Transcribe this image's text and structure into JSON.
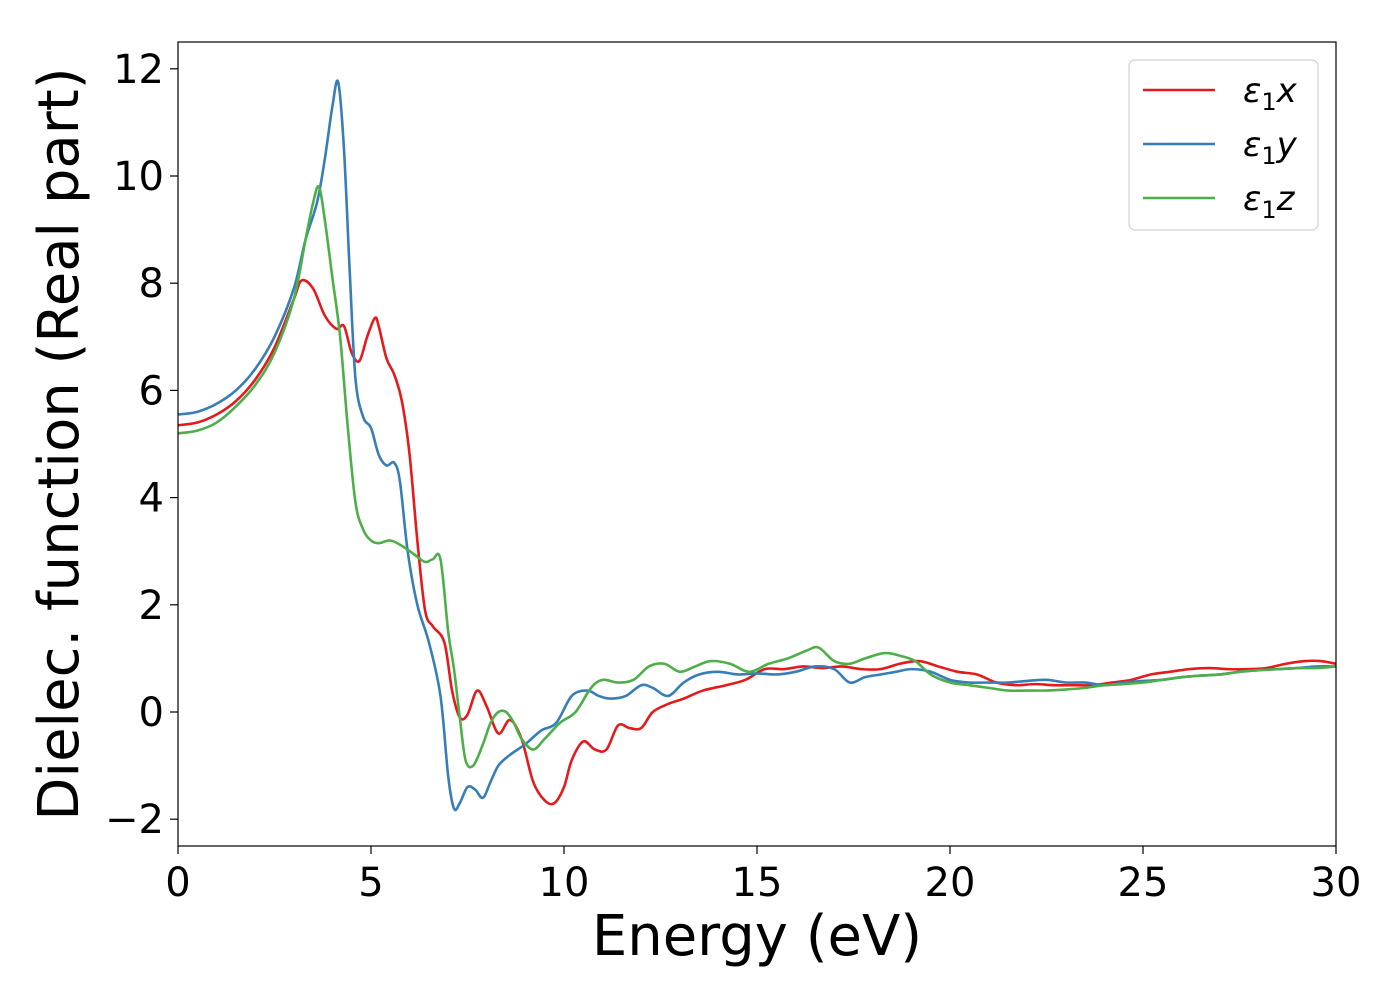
{
  "chart_data": {
    "type": "line",
    "title": "",
    "xlabel": "Energy (eV)",
    "ylabel": "Dielec. function (Real part)",
    "xlim": [
      0,
      30
    ],
    "ylim": [
      -2.5,
      12.5
    ],
    "xticks": [
      0,
      5,
      10,
      15,
      20,
      25,
      30
    ],
    "xtick_labels": [
      "0",
      "5",
      "10",
      "15",
      "20",
      "25",
      "30"
    ],
    "yticks": [
      -2,
      0,
      2,
      4,
      6,
      8,
      10,
      12
    ],
    "ytick_labels": [
      "−2",
      "0",
      "2",
      "4",
      "6",
      "8",
      "10",
      "12"
    ],
    "grid": false,
    "legend_position": "top-right",
    "series": [
      {
        "name": "ε1x",
        "symbol": "ε",
        "sub": "1",
        "axis": "x",
        "color": "#e41a1c",
        "x": [
          0,
          0.5,
          1,
          1.5,
          2,
          2.5,
          3,
          3.2,
          3.5,
          3.8,
          4.1,
          4.3,
          4.5,
          4.7,
          4.9,
          5.1,
          5.2,
          5.4,
          5.6,
          5.8,
          6.0,
          6.2,
          6.4,
          6.6,
          6.9,
          7.1,
          7.3,
          7.5,
          7.75,
          8.0,
          8.3,
          8.6,
          8.9,
          9.2,
          9.5,
          9.75,
          10.0,
          10.2,
          10.5,
          10.8,
          11.1,
          11.4,
          11.7,
          12.0,
          12.3,
          12.7,
          13.1,
          13.6,
          14.2,
          14.7,
          15.2,
          15.7,
          16.2,
          16.7,
          17.2,
          17.7,
          18.2,
          18.7,
          19.2,
          19.7,
          20.2,
          20.7,
          21.2,
          21.7,
          22.2,
          22.7,
          23.2,
          23.7,
          24.2,
          24.7,
          25.2,
          25.7,
          26.2,
          26.7,
          27.2,
          27.7,
          28.2,
          28.7,
          29.2,
          29.6,
          30.0
        ],
        "y": [
          5.35,
          5.4,
          5.55,
          5.8,
          6.2,
          6.8,
          7.7,
          8.05,
          7.9,
          7.4,
          7.15,
          7.2,
          6.7,
          6.55,
          7.0,
          7.35,
          7.2,
          6.6,
          6.3,
          5.8,
          4.8,
          3.2,
          1.9,
          1.6,
          1.3,
          0.4,
          -0.1,
          -0.05,
          0.4,
          0.1,
          -0.4,
          -0.15,
          -0.5,
          -1.3,
          -1.65,
          -1.7,
          -1.4,
          -0.9,
          -0.55,
          -0.7,
          -0.7,
          -0.25,
          -0.3,
          -0.3,
          0.0,
          0.15,
          0.25,
          0.4,
          0.5,
          0.6,
          0.8,
          0.8,
          0.85,
          0.82,
          0.85,
          0.8,
          0.8,
          0.9,
          0.95,
          0.85,
          0.75,
          0.7,
          0.55,
          0.5,
          0.52,
          0.5,
          0.5,
          0.5,
          0.55,
          0.6,
          0.7,
          0.75,
          0.8,
          0.82,
          0.8,
          0.8,
          0.82,
          0.9,
          0.95,
          0.95,
          0.9
        ]
      },
      {
        "name": "ε1y",
        "symbol": "ε",
        "sub": "1",
        "axis": "y",
        "color": "#377eb8",
        "x": [
          0,
          0.5,
          1,
          1.5,
          2,
          2.5,
          3,
          3.3,
          3.6,
          3.8,
          4.0,
          4.15,
          4.3,
          4.45,
          4.6,
          4.8,
          5.0,
          5.2,
          5.4,
          5.6,
          5.75,
          5.95,
          6.2,
          6.5,
          6.8,
          7.0,
          7.15,
          7.3,
          7.5,
          7.7,
          7.9,
          8.1,
          8.3,
          8.6,
          9.0,
          9.4,
          9.8,
          10.2,
          10.6,
          10.9,
          11.2,
          11.6,
          12.0,
          12.3,
          12.7,
          13.1,
          13.5,
          14.0,
          14.5,
          15.0,
          15.5,
          16.0,
          16.5,
          17.0,
          17.4,
          17.8,
          18.2,
          18.6,
          19.0,
          19.5,
          20.0,
          20.5,
          21.0,
          21.5,
          22.0,
          22.5,
          23.0,
          23.5,
          24.0,
          24.5,
          25.0,
          25.5,
          26.0,
          26.5,
          27.0,
          27.5,
          28.0,
          28.5,
          29.0,
          29.5,
          30.0
        ],
        "y": [
          5.55,
          5.6,
          5.75,
          6.0,
          6.4,
          7.0,
          7.9,
          8.8,
          9.5,
          10.3,
          11.3,
          11.75,
          10.5,
          8.2,
          6.2,
          5.5,
          5.3,
          4.8,
          4.6,
          4.65,
          4.3,
          3.0,
          2.0,
          1.3,
          0.3,
          -1.2,
          -1.8,
          -1.7,
          -1.4,
          -1.45,
          -1.6,
          -1.3,
          -1.0,
          -0.8,
          -0.6,
          -0.35,
          -0.2,
          0.3,
          0.4,
          0.3,
          0.25,
          0.3,
          0.5,
          0.45,
          0.3,
          0.55,
          0.7,
          0.75,
          0.7,
          0.72,
          0.7,
          0.75,
          0.85,
          0.8,
          0.55,
          0.65,
          0.7,
          0.75,
          0.8,
          0.75,
          0.6,
          0.55,
          0.55,
          0.55,
          0.58,
          0.6,
          0.55,
          0.55,
          0.5,
          0.55,
          0.58,
          0.6,
          0.65,
          0.68,
          0.7,
          0.75,
          0.78,
          0.8,
          0.82,
          0.85,
          0.85
        ]
      },
      {
        "name": "ε1z",
        "symbol": "ε",
        "sub": "1",
        "axis": "z",
        "color": "#4daf4a",
        "x": [
          0,
          0.5,
          1,
          1.5,
          2,
          2.5,
          3,
          3.3,
          3.5,
          3.65,
          3.8,
          4.0,
          4.2,
          4.4,
          4.6,
          4.8,
          5.0,
          5.2,
          5.5,
          5.8,
          6.1,
          6.4,
          6.6,
          6.8,
          7.0,
          7.15,
          7.3,
          7.45,
          7.65,
          7.9,
          8.1,
          8.3,
          8.5,
          8.7,
          8.9,
          9.2,
          9.5,
          9.9,
          10.3,
          10.7,
          11.0,
          11.4,
          11.8,
          12.2,
          12.6,
          13.0,
          13.4,
          13.8,
          14.3,
          14.8,
          15.3,
          15.8,
          16.3,
          16.6,
          17.0,
          17.4,
          17.8,
          18.3,
          18.7,
          19.1,
          19.5,
          20.0,
          20.5,
          21.0,
          21.5,
          22.0,
          22.5,
          23.0,
          23.5,
          24.0,
          24.5,
          25.0,
          25.5,
          26.0,
          26.5,
          27.0,
          27.5,
          28.0,
          28.5,
          29.0,
          29.5,
          30.0
        ],
        "y": [
          5.2,
          5.25,
          5.4,
          5.7,
          6.1,
          6.7,
          7.7,
          8.8,
          9.5,
          9.8,
          9.2,
          8.1,
          7.0,
          5.3,
          3.9,
          3.4,
          3.2,
          3.15,
          3.2,
          3.1,
          2.95,
          2.8,
          2.85,
          2.85,
          1.5,
          0.8,
          -0.1,
          -0.9,
          -1.0,
          -0.6,
          -0.2,
          0.0,
          0.0,
          -0.2,
          -0.5,
          -0.7,
          -0.5,
          -0.2,
          0.0,
          0.45,
          0.6,
          0.55,
          0.6,
          0.85,
          0.9,
          0.75,
          0.85,
          0.95,
          0.9,
          0.75,
          0.9,
          1.0,
          1.15,
          1.2,
          0.95,
          0.9,
          1.0,
          1.1,
          1.05,
          0.95,
          0.7,
          0.55,
          0.5,
          0.45,
          0.4,
          0.4,
          0.4,
          0.42,
          0.45,
          0.5,
          0.52,
          0.55,
          0.6,
          0.65,
          0.68,
          0.7,
          0.75,
          0.78,
          0.8,
          0.82,
          0.82,
          0.85
        ]
      }
    ]
  }
}
